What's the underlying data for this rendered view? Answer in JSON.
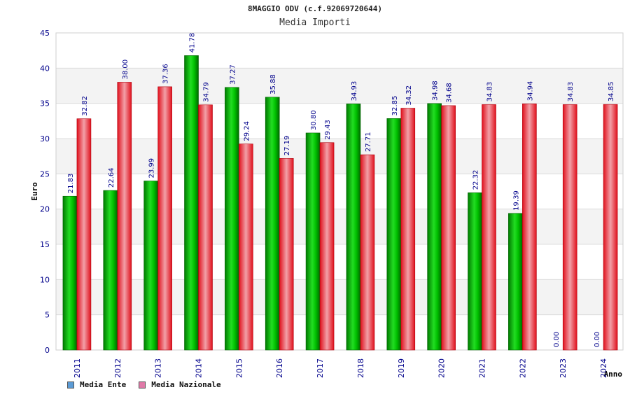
{
  "chart_data": {
    "type": "bar",
    "title": "8MAGGIO ODV (c.f.92069720644)",
    "subtitle": "Media Importi",
    "xlabel": "Anno",
    "ylabel": "Euro",
    "ylim": [
      0,
      45
    ],
    "yticks": [
      0,
      5,
      10,
      15,
      20,
      25,
      30,
      35,
      40,
      45
    ],
    "categories": [
      "2011",
      "2012",
      "2013",
      "2014",
      "2015",
      "2016",
      "2017",
      "2018",
      "2019",
      "2020",
      "2021",
      "2022",
      "2023",
      "2024"
    ],
    "series": [
      {
        "name": "Media Ente",
        "color": "#00b000",
        "legend_color": "#5b9bd5",
        "values": [
          21.83,
          22.64,
          23.99,
          41.78,
          37.27,
          35.88,
          30.8,
          34.93,
          32.85,
          34.98,
          22.32,
          19.39,
          0.0,
          0.0
        ]
      },
      {
        "name": "Media Nazionale",
        "color": "#e8101e",
        "legend_color": "#e07aa8",
        "values": [
          32.82,
          38.0,
          37.36,
          34.79,
          29.24,
          27.19,
          29.43,
          27.71,
          34.32,
          34.68,
          34.83,
          34.94,
          34.83,
          34.85
        ]
      }
    ],
    "grid": true,
    "legend_position": "bottom-left"
  }
}
